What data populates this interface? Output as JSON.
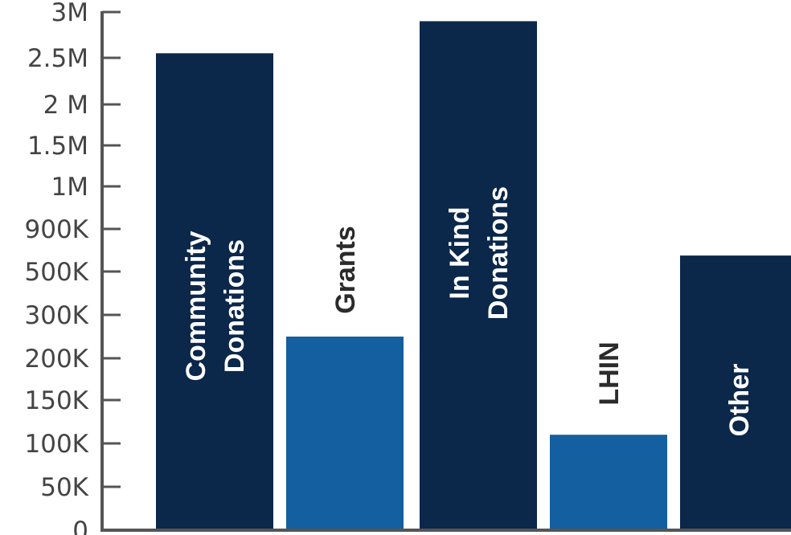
{
  "chart_data": {
    "type": "bar",
    "title": "",
    "xlabel": "",
    "ylabel": "",
    "y_tick_labels": [
      "3M",
      "2.5M",
      "2 M",
      "1.5M",
      "1M",
      "900K",
      "500K",
      "300K",
      "200K",
      "150K",
      "100K",
      "50K",
      "0"
    ],
    "categories": [
      {
        "label_lines": [
          "Community",
          "Donations"
        ],
        "value": 2550000,
        "color": "#0b274a",
        "label_color": "#ffffff",
        "label_position": "inside"
      },
      {
        "label_lines": [
          "Grants"
        ],
        "value": 250000,
        "color": "#135f9f",
        "label_color": "#2b2b2b",
        "label_position": "above"
      },
      {
        "label_lines": [
          "In Kind",
          "Donations"
        ],
        "value": 2900000,
        "color": "#0b274a",
        "label_color": "#ffffff",
        "label_position": "inside"
      },
      {
        "label_lines": [
          "LHIN"
        ],
        "value": 110000,
        "color": "#135f9f",
        "label_color": "#2b2b2b",
        "label_position": "above"
      },
      {
        "label_lines": [
          "Other"
        ],
        "value": 650000,
        "color": "#0b274a",
        "label_color": "#ffffff",
        "label_position": "inside"
      }
    ],
    "axis_color": "#555555",
    "grid": false,
    "legend": "none"
  }
}
